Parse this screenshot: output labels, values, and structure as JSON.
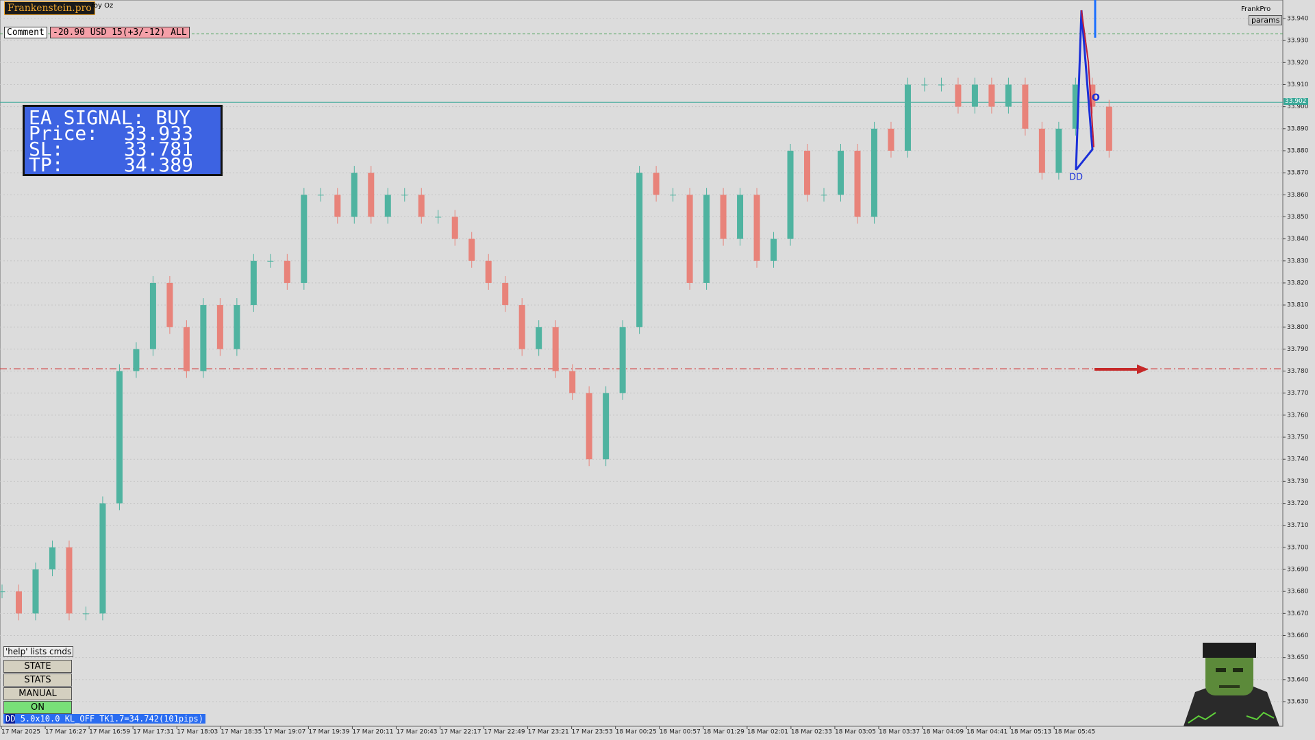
{
  "header": {
    "brand": "Frankenstein.pro",
    "symbol": "roy Oz",
    "right_brand": "FrankPro",
    "params_button": "params"
  },
  "comment_bar": {
    "label": "Comment",
    "text": "-20.90 USD 15(+3/-12) ALL"
  },
  "ea_panel": {
    "title": "EA SIGNAL: BUY",
    "rows": [
      {
        "label": "Price:",
        "value": 33.933
      },
      {
        "label": "SL:",
        "value": 33.781
      },
      {
        "label": "TP:",
        "value": 34.389
      }
    ]
  },
  "current_price": {
    "value": 33.902,
    "label": "33.902"
  },
  "pattern_labels": {
    "dd": "DD",
    "o": "O"
  },
  "controls": {
    "help": "'help' lists cmds",
    "buttons": [
      "STATE",
      "STATS",
      "MANUAL",
      "ON"
    ]
  },
  "status_bar": {
    "tag": "DD",
    "text": "5.0x10.0 KL_OFF TK1.7=34.742(101pips)"
  },
  "chart_data": {
    "type": "candlestick",
    "values": [
      33.68,
      33.67,
      33.69,
      33.7,
      33.67,
      33.67,
      33.72,
      33.78,
      33.79,
      33.82,
      33.8,
      33.78,
      33.81,
      33.79,
      33.81,
      33.83,
      33.83,
      33.82,
      33.86,
      33.86,
      33.85,
      33.87,
      33.85,
      33.86,
      33.86,
      33.85,
      33.85,
      33.84,
      33.83,
      33.82,
      33.81,
      33.79,
      33.8,
      33.78,
      33.77,
      33.74,
      33.77,
      33.8,
      33.87,
      33.86,
      33.86,
      33.82,
      33.86,
      33.84,
      33.86,
      33.83,
      33.84,
      33.88,
      33.86,
      33.86,
      33.88,
      33.85,
      33.89,
      33.88,
      33.91,
      33.91,
      33.91,
      33.9,
      33.91,
      33.9,
      33.91,
      33.89,
      33.87,
      33.89,
      33.91,
      33.9,
      33.88
    ],
    "up_color": "#4fb3a0",
    "down_color": "#e8837a",
    "x_labels": [
      "17 Mar 2025",
      "17 Mar 16:27",
      "17 Mar 16:59",
      "17 Mar 17:31",
      "17 Mar 18:03",
      "17 Mar 18:35",
      "17 Mar 19:07",
      "17 Mar 19:39",
      "17 Mar 20:11",
      "17 Mar 20:43",
      "17 Mar 22:17",
      "17 Mar 22:49",
      "17 Mar 23:21",
      "17 Mar 23:53",
      "18 Mar 00:25",
      "18 Mar 00:57",
      "18 Mar 01:29",
      "18 Mar 02:01",
      "18 Mar 02:33",
      "18 Mar 03:05",
      "18 Mar 03:37",
      "18 Mar 04:09",
      "18 Mar 04:41",
      "18 Mar 05:13",
      "18 Mar 05:45"
    ],
    "ylim": [
      33.6188,
      33.9484
    ],
    "yticks": [
      {
        "value": 33.63,
        "label": "33.630"
      },
      {
        "value": 33.64,
        "label": "33.640"
      },
      {
        "value": 33.65,
        "label": "33.650"
      },
      {
        "value": 33.66,
        "label": "33.660"
      },
      {
        "value": 33.67,
        "label": "33.670"
      },
      {
        "value": 33.68,
        "label": "33.680"
      },
      {
        "value": 33.69,
        "label": "33.690"
      },
      {
        "value": 33.7,
        "label": "33.700"
      },
      {
        "value": 33.71,
        "label": "33.710"
      },
      {
        "value": 33.72,
        "label": "33.720"
      },
      {
        "value": 33.73,
        "label": "33.730"
      },
      {
        "value": 33.74,
        "label": "33.740"
      },
      {
        "value": 33.75,
        "label": "33.750"
      },
      {
        "value": 33.76,
        "label": "33.760"
      },
      {
        "value": 33.77,
        "label": "33.770"
      },
      {
        "value": 33.78,
        "label": "33.780"
      },
      {
        "value": 33.79,
        "label": "33.790"
      },
      {
        "value": 33.8,
        "label": "33.800"
      },
      {
        "value": 33.81,
        "label": "33.810"
      },
      {
        "value": 33.82,
        "label": "33.820"
      },
      {
        "value": 33.83,
        "label": "33.830"
      },
      {
        "value": 33.84,
        "label": "33.840"
      },
      {
        "value": 33.85,
        "label": "33.850"
      },
      {
        "value": 33.86,
        "label": "33.860"
      },
      {
        "value": 33.87,
        "label": "33.870"
      },
      {
        "value": 33.88,
        "label": "33.880"
      },
      {
        "value": 33.89,
        "label": "33.890"
      },
      {
        "value": 33.9,
        "label": "33.900"
      },
      {
        "value": 33.91,
        "label": "33.910"
      },
      {
        "value": 33.92,
        "label": "33.920"
      },
      {
        "value": 33.93,
        "label": "33.930"
      },
      {
        "value": 33.94,
        "label": "33.940"
      }
    ],
    "grid": true
  }
}
